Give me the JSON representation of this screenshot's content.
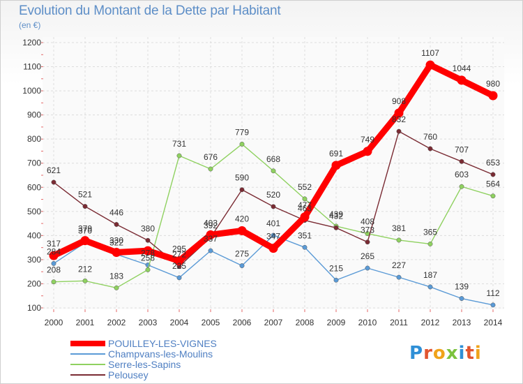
{
  "chart_data": {
    "type": "line",
    "title": "Evolution du Montant de la Dette par Habitant",
    "subtitle": "(en €)",
    "xlabel": "",
    "ylabel": "",
    "ylim": [
      100,
      1200
    ],
    "yticks": [
      100,
      200,
      300,
      400,
      500,
      600,
      700,
      800,
      900,
      1000,
      1100,
      1200
    ],
    "x": [
      "2000",
      "2001",
      "2002",
      "2003",
      "2004",
      "2005",
      "2006",
      "2007",
      "2008",
      "2009",
      "2010",
      "2011",
      "2012",
      "2013",
      "2014"
    ],
    "grid": true,
    "legend_position": "bottom-left",
    "series": [
      {
        "name": "POUILLEY-LES-VIGNES",
        "color": "#ff0000",
        "emphasis": true,
        "values": [
          317,
          379,
          330,
          337,
          295,
          403,
          420,
          347,
          477,
          691,
          749,
          908,
          1107,
          1044,
          980
        ],
        "labels": [
          "317",
          "379",
          "330",
          "",
          "295",
          "403",
          "420",
          "347",
          "477",
          "691",
          "749",
          "908",
          "1107",
          "1044",
          "980"
        ]
      },
      {
        "name": "Champvans-les-Moulins",
        "color": "#5a9ad6",
        "values": [
          284,
          370,
          322,
          278,
          225,
          337,
          275,
          401,
          351,
          215,
          265,
          227,
          187,
          139,
          112
        ],
        "labels": [
          "284",
          "370",
          "322",
          "278",
          "225",
          "337",
          "275",
          "401",
          "351",
          "215",
          "265",
          "227",
          "187",
          "139",
          "112"
        ]
      },
      {
        "name": "Serre-les-Sapins",
        "color": "#8fd160",
        "values": [
          208,
          212,
          183,
          258,
          731,
          676,
          779,
          668,
          552,
          439,
          408,
          381,
          365,
          603,
          564
        ],
        "labels": [
          "208",
          "212",
          "183",
          "258",
          "731",
          "676",
          "779",
          "668",
          "552",
          "439",
          "408",
          "381",
          "365",
          "603",
          "564"
        ]
      },
      {
        "name": "Pelousey",
        "color": "#7a2b33",
        "values": [
          621,
          521,
          446,
          380,
          272,
          392,
          590,
          520,
          463,
          432,
          373,
          832,
          760,
          707,
          653
        ],
        "labels": [
          "621",
          "521",
          "446",
          "380",
          "272",
          "392",
          "590",
          "520",
          "463",
          "432",
          "373",
          "832",
          "760",
          "707",
          "653"
        ]
      }
    ]
  },
  "brand": {
    "name": "Proxiti",
    "colors": [
      "#2f8fd6",
      "#e1552f",
      "#f0a31a",
      "#7cc23e"
    ]
  }
}
